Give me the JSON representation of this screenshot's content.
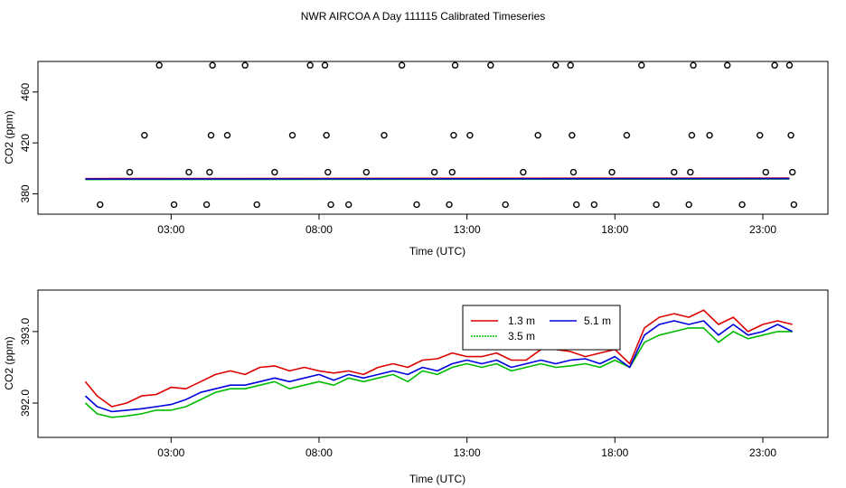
{
  "figure_title": "NWR AIRCOA A  Day 111115  Calibrated Timeseries",
  "colors": {
    "c13": "#dd0000",
    "c35": "#00bb00",
    "c51": "#0000dd",
    "axis": "#000000"
  },
  "chart_data": [
    {
      "type": "scatter",
      "xlabel": "Time (UTC)",
      "ylabel": "CO2 (ppm)",
      "xlim": [
        -1.5,
        25.2
      ],
      "ylim": [
        364,
        484
      ],
      "xticks": [
        3,
        8,
        13,
        18,
        23
      ],
      "xtick_labels": [
        "03:00",
        "08:00",
        "13:00",
        "18:00",
        "23:00"
      ],
      "yticks": [
        380,
        420,
        460
      ],
      "ytick_labels": [
        "380",
        "420",
        "460"
      ],
      "baseline": {
        "x": [
          0.1,
          23.9
        ],
        "y": [
          391.6,
          392.0
        ]
      },
      "points": [
        {
          "x": 0.6,
          "y": 371.5
        },
        {
          "x": 1.6,
          "y": 397
        },
        {
          "x": 2.1,
          "y": 426
        },
        {
          "x": 2.6,
          "y": 481
        },
        {
          "x": 3.1,
          "y": 371.5
        },
        {
          "x": 3.6,
          "y": 397
        },
        {
          "x": 4.2,
          "y": 371.5
        },
        {
          "x": 4.3,
          "y": 397
        },
        {
          "x": 4.35,
          "y": 426
        },
        {
          "x": 4.4,
          "y": 481
        },
        {
          "x": 4.9,
          "y": 426
        },
        {
          "x": 5.5,
          "y": 481
        },
        {
          "x": 5.9,
          "y": 371.5
        },
        {
          "x": 6.5,
          "y": 397
        },
        {
          "x": 7.1,
          "y": 426
        },
        {
          "x": 7.7,
          "y": 481
        },
        {
          "x": 8.2,
          "y": 481
        },
        {
          "x": 8.25,
          "y": 426
        },
        {
          "x": 8.3,
          "y": 397
        },
        {
          "x": 8.4,
          "y": 371.5
        },
        {
          "x": 9.0,
          "y": 371.5
        },
        {
          "x": 9.6,
          "y": 397
        },
        {
          "x": 10.2,
          "y": 426
        },
        {
          "x": 10.8,
          "y": 481
        },
        {
          "x": 11.3,
          "y": 371.5
        },
        {
          "x": 11.9,
          "y": 397
        },
        {
          "x": 12.4,
          "y": 371.5
        },
        {
          "x": 12.5,
          "y": 397
        },
        {
          "x": 12.55,
          "y": 426
        },
        {
          "x": 12.6,
          "y": 481
        },
        {
          "x": 13.1,
          "y": 426
        },
        {
          "x": 13.8,
          "y": 481
        },
        {
          "x": 14.3,
          "y": 371.5
        },
        {
          "x": 14.9,
          "y": 397
        },
        {
          "x": 15.4,
          "y": 426
        },
        {
          "x": 16.0,
          "y": 481
        },
        {
          "x": 16.5,
          "y": 481
        },
        {
          "x": 16.55,
          "y": 426
        },
        {
          "x": 16.6,
          "y": 397
        },
        {
          "x": 16.7,
          "y": 371.5
        },
        {
          "x": 17.3,
          "y": 371.5
        },
        {
          "x": 17.9,
          "y": 397
        },
        {
          "x": 18.4,
          "y": 426
        },
        {
          "x": 18.9,
          "y": 481
        },
        {
          "x": 19.4,
          "y": 371.5
        },
        {
          "x": 20.0,
          "y": 397
        },
        {
          "x": 20.5,
          "y": 371.5
        },
        {
          "x": 20.55,
          "y": 397
        },
        {
          "x": 20.6,
          "y": 426
        },
        {
          "x": 20.65,
          "y": 481
        },
        {
          "x": 21.2,
          "y": 426
        },
        {
          "x": 21.8,
          "y": 481
        },
        {
          "x": 22.3,
          "y": 371.5
        },
        {
          "x": 22.9,
          "y": 426
        },
        {
          "x": 23.1,
          "y": 397
        },
        {
          "x": 23.4,
          "y": 481
        },
        {
          "x": 23.9,
          "y": 481
        },
        {
          "x": 23.95,
          "y": 426
        },
        {
          "x": 24.0,
          "y": 397
        },
        {
          "x": 24.05,
          "y": 371.5
        }
      ]
    },
    {
      "type": "line",
      "xlabel": "Time (UTC)",
      "ylabel": "CO2 (ppm)",
      "xlim": [
        -1.5,
        25.2
      ],
      "ylim": [
        391.52,
        393.58
      ],
      "xticks": [
        3,
        8,
        13,
        18,
        23
      ],
      "xtick_labels": [
        "03:00",
        "08:00",
        "13:00",
        "18:00",
        "23:00"
      ],
      "yticks": [
        392.0,
        393.0
      ],
      "ytick_labels": [
        "392.0",
        "393.0"
      ],
      "legend": {
        "position": "top-center",
        "entries": [
          "1.3 m",
          "5.1 m",
          "3.5 m"
        ]
      },
      "series": [
        {
          "name": "1.3 m",
          "color_key": "c13",
          "x": [
            0.1,
            0.5,
            1.0,
            1.5,
            2.0,
            2.5,
            3.0,
            3.5,
            4.0,
            4.5,
            5.0,
            5.5,
            6.0,
            6.5,
            7.0,
            7.5,
            8.0,
            8.5,
            9.0,
            9.5,
            10.0,
            10.5,
            11.0,
            11.5,
            12.0,
            12.5,
            13.0,
            13.5,
            14.0,
            14.5,
            15.0,
            15.5,
            16.0,
            16.5,
            17.0,
            17.5,
            18.0,
            18.5,
            19.0,
            19.5,
            20.0,
            20.5,
            21.0,
            21.5,
            22.0,
            22.5,
            23.0,
            23.5,
            24.0
          ],
          "y": [
            392.3,
            392.1,
            391.95,
            392.0,
            392.1,
            392.12,
            392.22,
            392.2,
            392.3,
            392.4,
            392.45,
            392.4,
            392.5,
            392.52,
            392.45,
            392.5,
            392.45,
            392.42,
            392.45,
            392.4,
            392.5,
            392.55,
            392.5,
            392.6,
            392.62,
            392.7,
            392.65,
            392.65,
            392.7,
            392.6,
            392.6,
            392.75,
            392.75,
            392.72,
            392.65,
            392.7,
            392.75,
            392.55,
            393.05,
            393.2,
            393.25,
            393.2,
            393.3,
            393.1,
            393.2,
            393.0,
            393.1,
            393.15,
            393.1
          ]
        },
        {
          "name": "3.5 m",
          "color_key": "c35",
          "x": [
            0.1,
            0.5,
            1.0,
            1.5,
            2.0,
            2.5,
            3.0,
            3.5,
            4.0,
            4.5,
            5.0,
            5.5,
            6.0,
            6.5,
            7.0,
            7.5,
            8.0,
            8.5,
            9.0,
            9.5,
            10.0,
            10.5,
            11.0,
            11.5,
            12.0,
            12.5,
            13.0,
            13.5,
            14.0,
            14.5,
            15.0,
            15.5,
            16.0,
            16.5,
            17.0,
            17.5,
            18.0,
            18.5,
            19.0,
            19.5,
            20.0,
            20.5,
            21.0,
            21.5,
            22.0,
            22.5,
            23.0,
            23.5,
            24.0
          ],
          "y": [
            392.0,
            391.85,
            391.8,
            391.82,
            391.85,
            391.9,
            391.9,
            391.95,
            392.05,
            392.15,
            392.2,
            392.2,
            392.25,
            392.3,
            392.2,
            392.25,
            392.3,
            392.25,
            392.35,
            392.3,
            392.35,
            392.4,
            392.3,
            392.45,
            392.4,
            392.5,
            392.55,
            392.5,
            392.55,
            392.45,
            392.5,
            392.55,
            392.5,
            392.52,
            392.55,
            392.5,
            392.6,
            392.5,
            392.85,
            392.95,
            393.0,
            393.05,
            393.05,
            392.85,
            393.0,
            392.9,
            392.95,
            393.0,
            393.0
          ]
        },
        {
          "name": "5.1 m",
          "color_key": "c51",
          "x": [
            0.1,
            0.5,
            1.0,
            1.5,
            2.0,
            2.5,
            3.0,
            3.5,
            4.0,
            4.5,
            5.0,
            5.5,
            6.0,
            6.5,
            7.0,
            7.5,
            8.0,
            8.5,
            9.0,
            9.5,
            10.0,
            10.5,
            11.0,
            11.5,
            12.0,
            12.5,
            13.0,
            13.5,
            14.0,
            14.5,
            15.0,
            15.5,
            16.0,
            16.5,
            17.0,
            17.5,
            18.0,
            18.5,
            19.0,
            19.5,
            20.0,
            20.5,
            21.0,
            21.5,
            22.0,
            22.5,
            23.0,
            23.5,
            24.0
          ],
          "y": [
            392.1,
            391.95,
            391.88,
            391.9,
            391.92,
            391.95,
            391.98,
            392.05,
            392.15,
            392.2,
            392.25,
            392.25,
            392.3,
            392.35,
            392.3,
            392.35,
            392.4,
            392.32,
            392.4,
            392.35,
            392.4,
            392.45,
            392.4,
            392.5,
            392.45,
            392.55,
            392.6,
            392.55,
            392.6,
            392.5,
            392.55,
            392.6,
            392.55,
            392.6,
            392.62,
            392.55,
            392.65,
            392.5,
            392.95,
            393.1,
            393.15,
            393.1,
            393.15,
            392.95,
            393.1,
            392.95,
            393.0,
            393.1,
            393.0
          ]
        }
      ]
    }
  ]
}
